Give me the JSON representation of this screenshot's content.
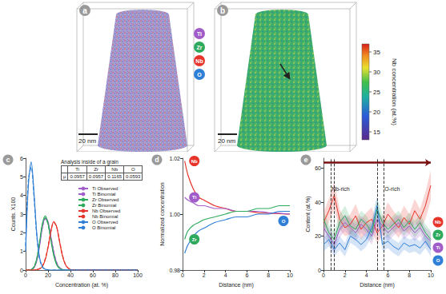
{
  "panels_3d": [
    {
      "label": "a",
      "scale_bar": "20 nm",
      "elements": [
        {
          "name": "Ti",
          "color": "#a05cc8"
        },
        {
          "name": "Zr",
          "color": "#2eaa5c"
        },
        {
          "name": "Nb",
          "color": "#e8352b"
        },
        {
          "name": "O",
          "color": "#2f7fd6"
        }
      ]
    },
    {
      "label": "b",
      "scale_bar": "20 nm",
      "colorbar": {
        "title": "Nb concentration (at.%)",
        "range": [
          13,
          37
        ],
        "ticks": [
          15,
          20,
          25,
          30,
          35
        ]
      }
    }
  ],
  "chart_data": [
    {
      "label": "c",
      "type": "line",
      "xlabel": "Concentration (at. %)",
      "ylabel": "Counts. X100",
      "xlim": [
        0,
        100
      ],
      "xticks": [
        0,
        20,
        40,
        60,
        80,
        100
      ],
      "ylim": [
        0,
        6
      ],
      "yticks": [
        0,
        1,
        2,
        3,
        4,
        5,
        6
      ],
      "legend": "right",
      "table": {
        "title": "Analysis inside of a grain",
        "header": [
          "Ti",
          "Zr",
          "Nb",
          "O"
        ],
        "rows": [
          {
            "label": "μ",
            "values": [
              0.0957,
              0.0957,
              0.1165,
              0.0593
            ]
          }
        ]
      },
      "x": [
        0,
        2.5,
        5,
        7.5,
        10,
        12.5,
        15,
        17.5,
        20,
        22.5,
        25,
        27.5,
        30,
        32.5,
        35,
        37.5,
        40,
        42.5,
        45,
        100
      ],
      "series": [
        {
          "name": "Ti Observed",
          "color": "#a05cc8",
          "line_style": "solid",
          "values": [
            0,
            0,
            0.02,
            0.12,
            0.5,
            1.3,
            2.3,
            2.8,
            2.6,
            1.8,
            1.0,
            0.4,
            0.12,
            0.03,
            0,
            0,
            0,
            0,
            0,
            0
          ]
        },
        {
          "name": "Ti Binomial",
          "color": "#a05cc8",
          "line_style": "dashed",
          "values": [
            0,
            0,
            0.03,
            0.15,
            0.55,
            1.35,
            2.3,
            2.75,
            2.5,
            1.8,
            1.0,
            0.45,
            0.15,
            0.04,
            0.01,
            0,
            0,
            0,
            0,
            0
          ]
        },
        {
          "name": "Zr Observed",
          "color": "#2eaa5c",
          "line_style": "solid",
          "values": [
            0,
            0,
            0.02,
            0.15,
            0.6,
            1.5,
            2.5,
            2.9,
            2.5,
            1.6,
            0.8,
            0.3,
            0.1,
            0.03,
            0,
            0,
            0,
            0,
            0,
            0
          ]
        },
        {
          "name": "Zr Binomial",
          "color": "#2eaa5c",
          "line_style": "dashed",
          "values": [
            0,
            0,
            0.03,
            0.18,
            0.65,
            1.55,
            2.45,
            2.8,
            2.45,
            1.65,
            0.85,
            0.35,
            0.12,
            0.03,
            0.01,
            0,
            0,
            0,
            0,
            0
          ]
        },
        {
          "name": "Nb Observed",
          "color": "#e8352b",
          "line_style": "solid",
          "values": [
            0,
            0,
            0,
            0,
            0.02,
            0.06,
            0.2,
            0.55,
            1.2,
            2.05,
            2.6,
            2.35,
            1.6,
            0.85,
            0.35,
            0.12,
            0.03,
            0.01,
            0,
            0
          ]
        },
        {
          "name": "Nb Binomial",
          "color": "#e8352b",
          "line_style": "dashed",
          "values": [
            0,
            0,
            0,
            0,
            0.02,
            0.07,
            0.22,
            0.6,
            1.25,
            2.05,
            2.55,
            2.35,
            1.65,
            0.9,
            0.38,
            0.13,
            0.04,
            0.01,
            0,
            0
          ]
        },
        {
          "name": "O Observed",
          "color": "#2f7fd6",
          "line_style": "solid",
          "values": [
            1.0,
            4.6,
            5.8,
            4.1,
            1.9,
            0.65,
            0.17,
            0.04,
            0.01,
            0,
            0,
            0,
            0,
            0,
            0,
            0,
            0,
            0,
            0,
            0
          ]
        },
        {
          "name": "O Binomial",
          "color": "#2f7fd6",
          "line_style": "dashed",
          "values": [
            1.3,
            4.9,
            5.5,
            3.9,
            1.8,
            0.6,
            0.16,
            0.04,
            0.01,
            0,
            0,
            0,
            0,
            0,
            0,
            0,
            0,
            0,
            0,
            0
          ]
        }
      ]
    },
    {
      "label": "d",
      "type": "line",
      "xlabel": "Distance (nm)",
      "ylabel": "Normalized concentration",
      "xlim": [
        0,
        10
      ],
      "xticks": [
        0,
        2,
        4,
        6,
        8,
        10
      ],
      "ylim": [
        0.98,
        1.02
      ],
      "yticks": [
        0.98,
        {
          "value": 1,
          "label": "1.00"
        },
        1.02
      ],
      "x": [
        0.2,
        0.5,
        1,
        1.5,
        2,
        3,
        4,
        5,
        6,
        7,
        8,
        9,
        10
      ],
      "series": [
        {
          "name": "Nb",
          "color": "#e8352b",
          "values": [
            1.019,
            1.014,
            1.009,
            1.006,
            1.005,
            1.003,
            1.002,
            1.001,
            1.001,
            1.0005,
            1.0003,
            1.0002,
            1.0
          ]
        },
        {
          "name": "Ti",
          "color": "#a05cc8",
          "values": [
            1.006,
            1.005,
            1.004,
            1.003,
            1.003,
            1.002,
            1.002,
            1.001,
            1.001,
            1.001,
            1.0005,
            1.0003,
            1.0
          ]
        },
        {
          "name": "Zr",
          "color": "#2eaa5c",
          "values": [
            0.991,
            0.994,
            0.996,
            0.997,
            0.998,
            0.999,
            1.0,
            1.001,
            1.001,
            1.002,
            1.002,
            1.003,
            1.003
          ]
        },
        {
          "name": "O",
          "color": "#2f7fd6",
          "values": [
            0.986,
            0.989,
            0.992,
            0.994,
            0.995,
            0.997,
            0.998,
            0.999,
            0.999,
            1.0,
            1.0,
            1.001,
            1.001
          ]
        }
      ]
    },
    {
      "label": "e",
      "type": "line",
      "xlabel": "Distance (nm)",
      "ylabel": "Content (at.%)",
      "xlim": [
        0,
        10
      ],
      "xticks": [
        0,
        2,
        4,
        6,
        8,
        10
      ],
      "ylim": [
        0,
        66
      ],
      "yticks": [
        0,
        20,
        40,
        60
      ],
      "vlines": [
        0.7,
        1.0,
        5.05,
        5.6
      ],
      "annotations": [
        {
          "text": "Nb-rich",
          "x": 1.6,
          "y": 48
        },
        {
          "text": "O-rich",
          "x": 6.4,
          "y": 48
        }
      ],
      "x": [
        0,
        0.5,
        1,
        1.5,
        2,
        2.5,
        3,
        3.5,
        4,
        4.5,
        5,
        5.5,
        6,
        6.5,
        7,
        7.5,
        8,
        8.5,
        9,
        9.5,
        10
      ],
      "series": [
        {
          "name": "Nb",
          "color": "#e8352b",
          "values": [
            28,
            35,
            44,
            30,
            25,
            27,
            32,
            24,
            28,
            30,
            22,
            26,
            33,
            29,
            25,
            31,
            27,
            35,
            30,
            38,
            50
          ],
          "errors": [
            6,
            7,
            8,
            6,
            5,
            6,
            7,
            6,
            6,
            7,
            6,
            6,
            7,
            6,
            6,
            7,
            6,
            7,
            6,
            8,
            9
          ]
        },
        {
          "name": "Zr",
          "color": "#2eaa5c",
          "values": [
            30,
            22,
            18,
            28,
            32,
            26,
            24,
            30,
            27,
            22,
            36,
            28,
            24,
            27,
            30,
            25,
            29,
            24,
            28,
            22,
            18
          ],
          "errors": [
            5,
            5,
            5,
            5,
            6,
            5,
            5,
            5,
            5,
            5,
            6,
            5,
            5,
            5,
            5,
            5,
            5,
            5,
            5,
            5,
            5
          ]
        },
        {
          "name": "Ti",
          "color": "#a05cc8",
          "values": [
            25,
            20,
            15,
            24,
            28,
            25,
            22,
            27,
            24,
            20,
            30,
            26,
            22,
            25,
            28,
            23,
            26,
            22,
            25,
            20,
            17
          ],
          "errors": [
            5,
            5,
            5,
            5,
            5,
            5,
            5,
            5,
            5,
            5,
            6,
            5,
            5,
            5,
            5,
            5,
            5,
            5,
            5,
            5,
            5
          ]
        },
        {
          "name": "O",
          "color": "#2f7fd6",
          "values": [
            15,
            18,
            12,
            16,
            12,
            20,
            18,
            15,
            18,
            25,
            38,
            15,
            17,
            14,
            12,
            16,
            14,
            15,
            13,
            17,
            12
          ],
          "errors": [
            4,
            4,
            4,
            4,
            4,
            4,
            4,
            4,
            4,
            5,
            6,
            4,
            4,
            4,
            4,
            4,
            4,
            4,
            4,
            4,
            4
          ]
        }
      ]
    }
  ]
}
